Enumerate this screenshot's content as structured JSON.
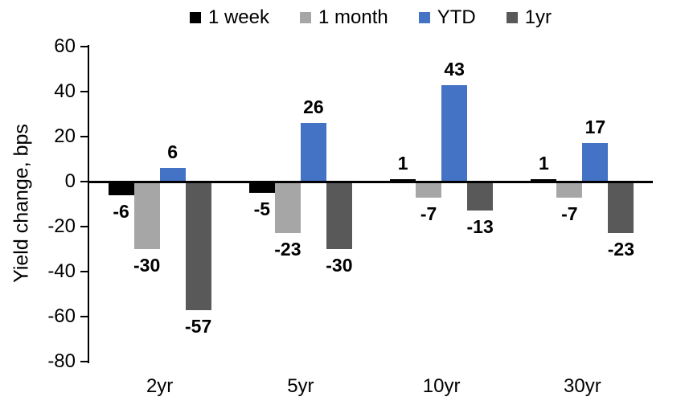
{
  "chart_data": {
    "type": "bar",
    "title": "",
    "ylabel": "Yield change, bps",
    "xlabel": "",
    "categories": [
      "2yr",
      "5yr",
      "10yr",
      "30yr"
    ],
    "series": [
      {
        "name": "1 week",
        "color": "#000000",
        "values": [
          -6,
          -5,
          1,
          1
        ]
      },
      {
        "name": "1 month",
        "color": "#a6a6a6",
        "values": [
          -30,
          -23,
          -7,
          -7
        ]
      },
      {
        "name": "YTD",
        "color": "#4472c4",
        "values": [
          6,
          26,
          43,
          17
        ]
      },
      {
        "name": "1yr",
        "color": "#595959",
        "values": [
          -57,
          -30,
          -13,
          -23
        ]
      }
    ],
    "ylim": [
      -80,
      60
    ],
    "ytick_step": 20,
    "yticks": [
      60,
      40,
      20,
      0,
      -20,
      -40,
      -60,
      -80
    ],
    "grid": false,
    "legend_position": "top",
    "data_labels": true,
    "axis_color": "#000000"
  }
}
